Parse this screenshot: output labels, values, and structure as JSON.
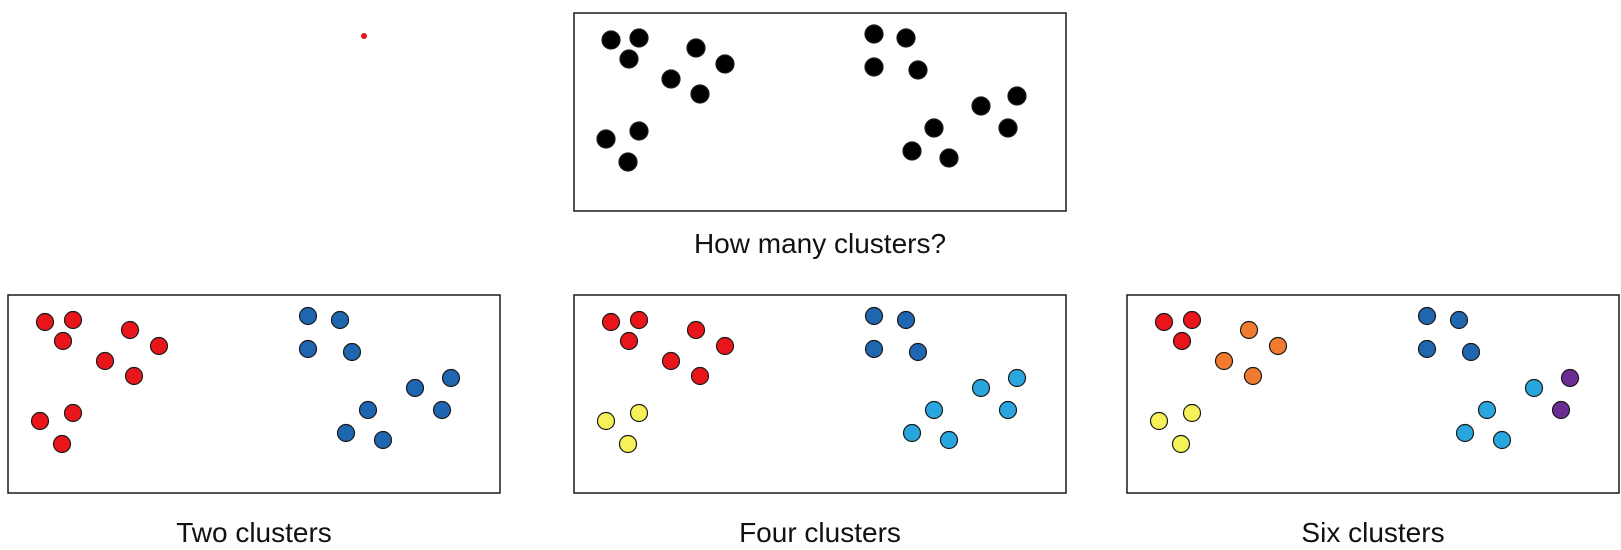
{
  "accent_dot_color": "#e8161b",
  "cluster_colors": {
    "black": "#000000",
    "red": "#e8161b",
    "orange": "#f07a2d",
    "yellow": "#f5f259",
    "blue": "#1f66b0",
    "light_blue": "#2aa6de",
    "purple": "#6b2c93"
  },
  "panels": [
    {
      "id": "question",
      "caption": "How many clusters?",
      "assignment": [
        "black",
        "black",
        "black",
        "black",
        "black",
        "black",
        "black",
        "black",
        "black",
        "black",
        "black",
        "black",
        "black",
        "black",
        "black",
        "black",
        "black",
        "black",
        "black",
        "black",
        "black",
        "black"
      ]
    },
    {
      "id": "two",
      "caption": "Two clusters",
      "assignment": [
        "red",
        "red",
        "red",
        "red",
        "red",
        "red",
        "red",
        "red",
        "red",
        "red",
        "blue",
        "blue",
        "blue",
        "blue",
        "blue",
        "blue",
        "blue",
        "blue",
        "blue",
        "blue",
        "blue",
        "blue"
      ]
    },
    {
      "id": "four",
      "caption": "Four clusters",
      "assignment": [
        "red",
        "red",
        "red",
        "red",
        "red",
        "red",
        "red",
        "yellow",
        "yellow",
        "yellow",
        "blue",
        "blue",
        "blue",
        "blue",
        "light_blue",
        "light_blue",
        "light_blue",
        "light_blue",
        "light_blue",
        "light_blue",
        "light_blue",
        "light_blue"
      ]
    },
    {
      "id": "six",
      "caption": "Six clusters",
      "assignment": [
        "red",
        "red",
        "red",
        "orange",
        "orange",
        "orange",
        "orange",
        "yellow",
        "yellow",
        "yellow",
        "blue",
        "blue",
        "blue",
        "blue",
        "light_blue",
        "light_blue",
        "light_blue",
        "light_blue",
        "purple",
        "purple",
        "purple",
        "purple"
      ]
    }
  ]
}
